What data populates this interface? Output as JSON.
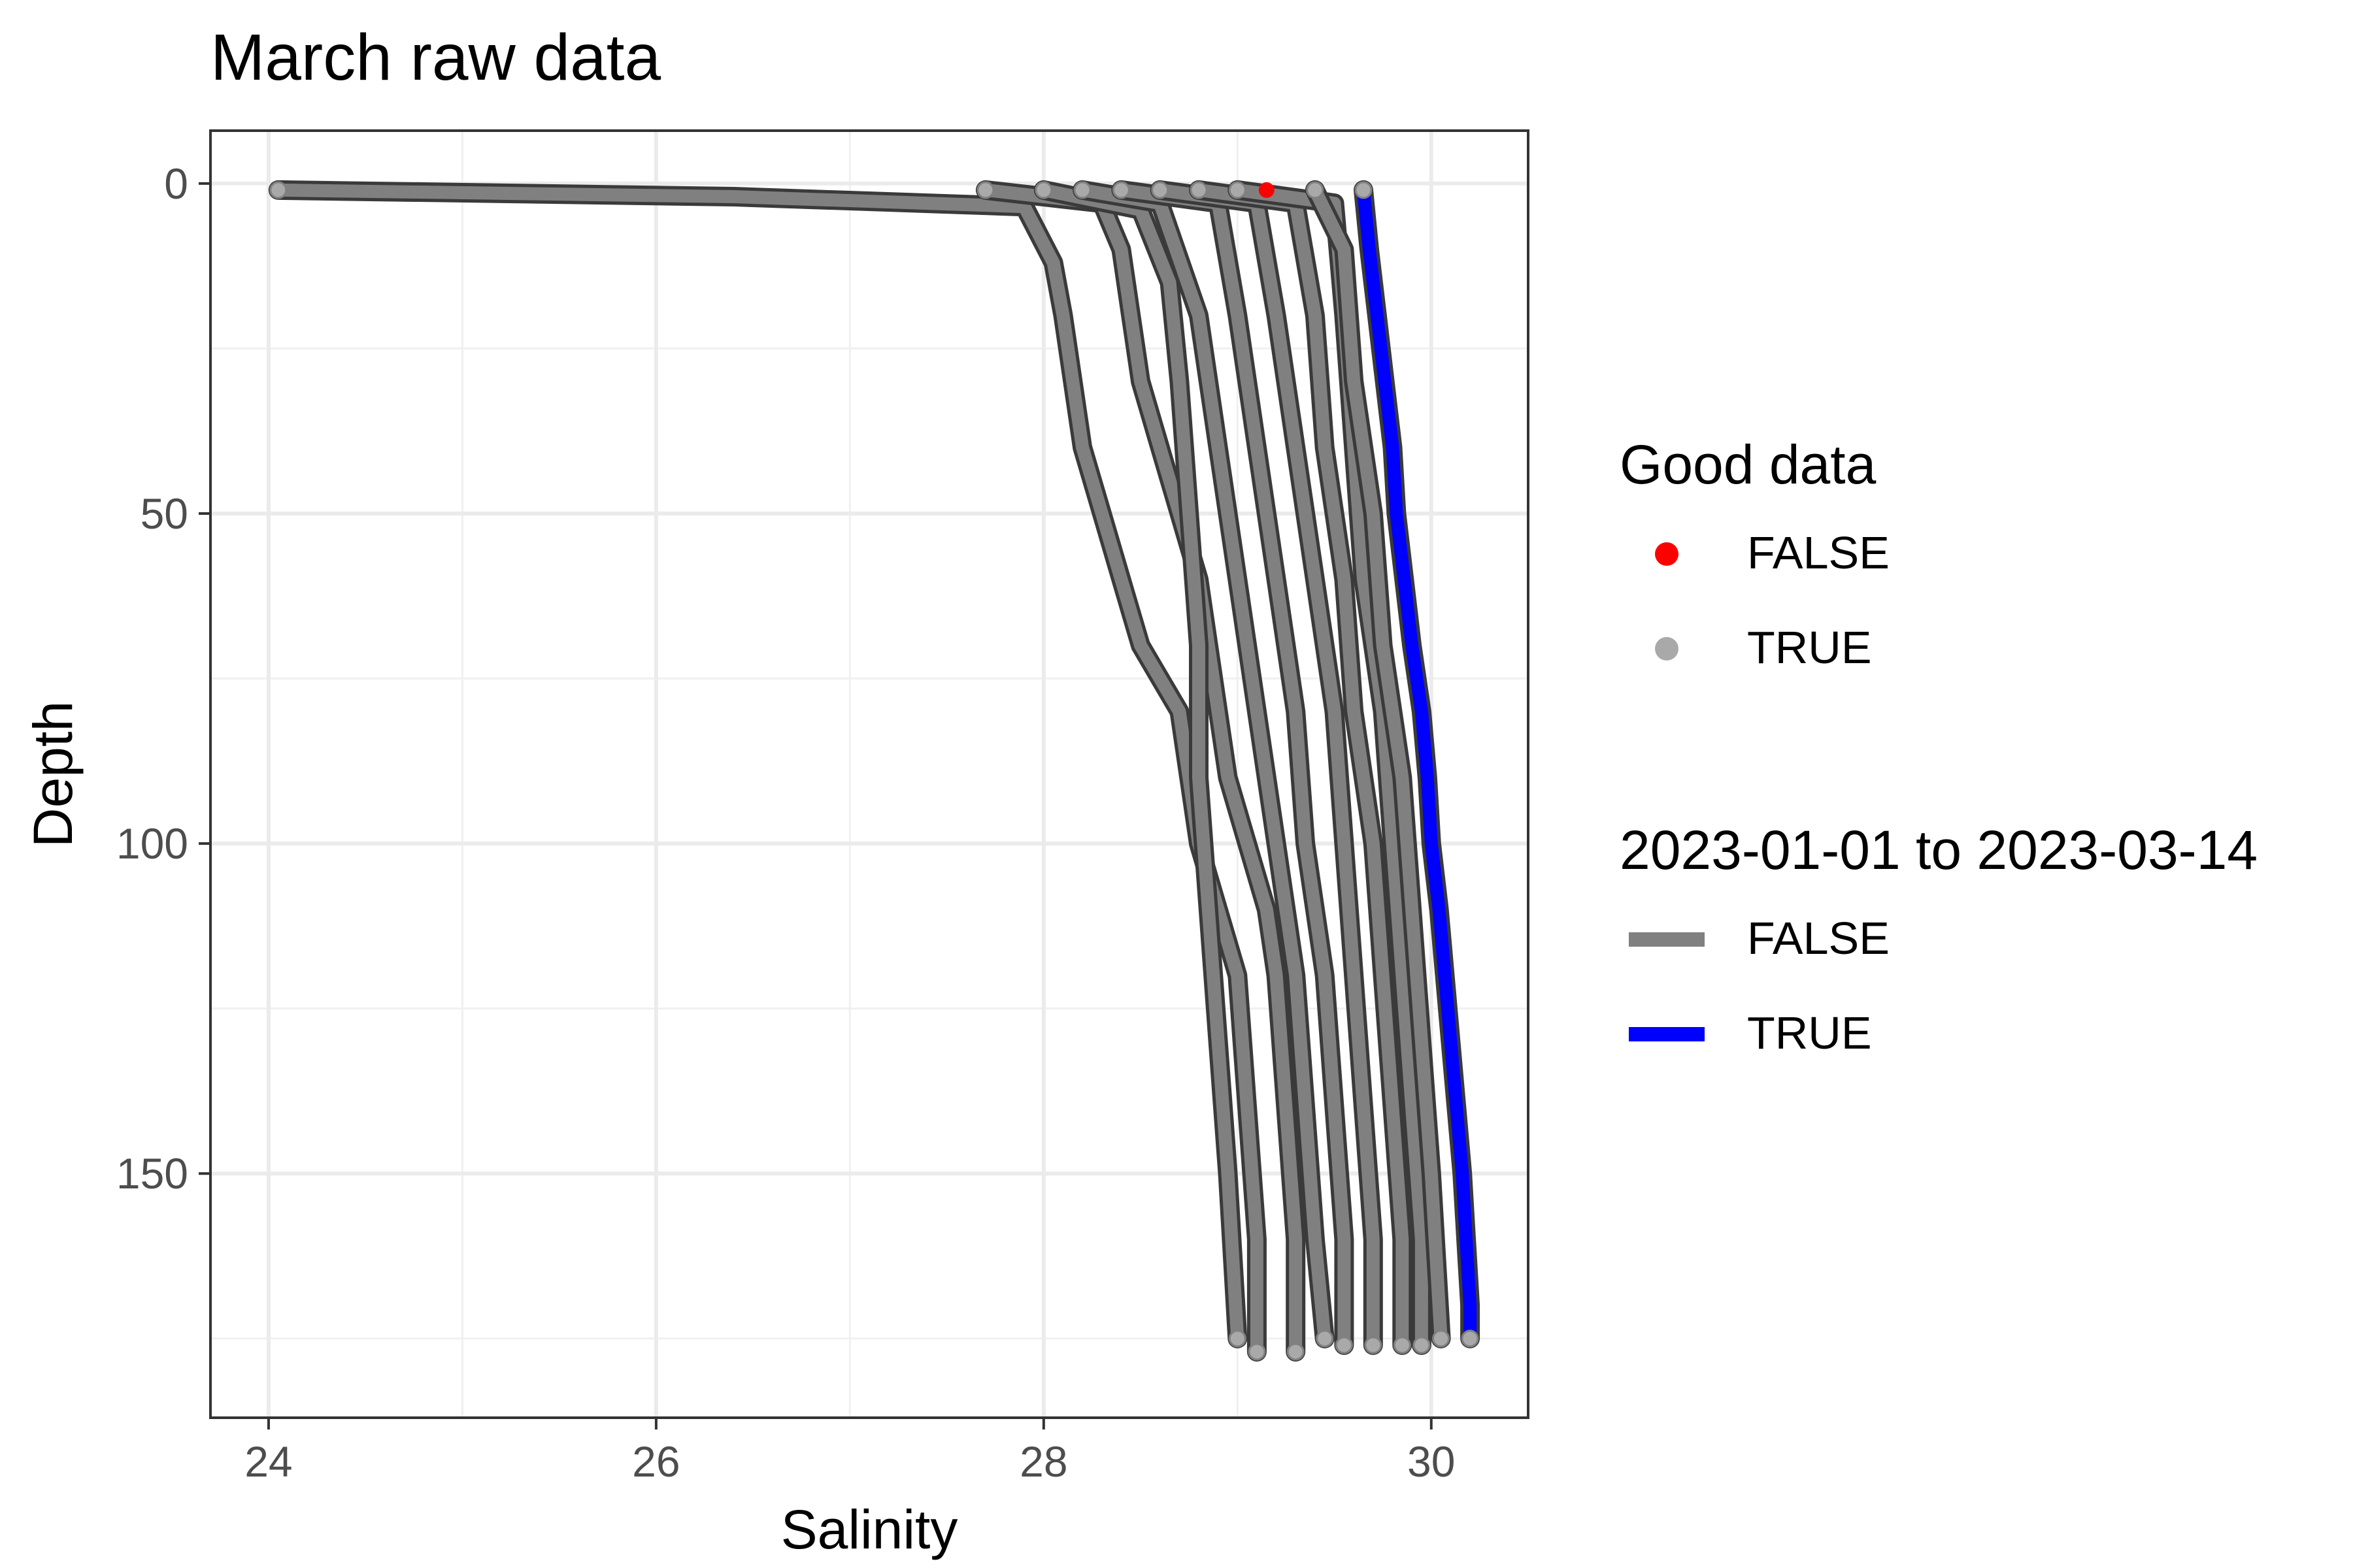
{
  "chart_data": {
    "type": "line",
    "title": "March raw data",
    "xlabel": "Salinity",
    "ylabel": "Depth",
    "xlim": [
      23.7,
      30.5
    ],
    "ylim": [
      187,
      -8
    ],
    "y_reversed": true,
    "x_ticks": [
      24,
      26,
      28,
      30
    ],
    "x_tick_labels": [
      "24",
      "26",
      "28",
      "30"
    ],
    "y_ticks": [
      0,
      50,
      100,
      150
    ],
    "y_tick_labels": [
      "0",
      "50",
      "100",
      "150"
    ],
    "grid": true,
    "legend_placement": "right",
    "legends": [
      {
        "title": "Good data",
        "kind": "point",
        "entries": [
          {
            "label": "FALSE",
            "color": "#ff0000"
          },
          {
            "label": "TRUE",
            "color": "#a9a9a9"
          }
        ]
      },
      {
        "title": "2023-01-01 to 2023-03-14",
        "kind": "line",
        "entries": [
          {
            "label": "FALSE",
            "color": "#808080"
          },
          {
            "label": "TRUE",
            "color": "#0000ff"
          }
        ]
      }
    ],
    "series": [
      {
        "name": "FALSE",
        "color": "#808080",
        "points": [
          [
            24.05,
            1
          ],
          [
            26.4,
            2
          ],
          [
            27.9,
            3.5
          ],
          [
            28.05,
            12
          ],
          [
            28.1,
            20
          ],
          [
            28.15,
            30
          ],
          [
            28.2,
            40
          ],
          [
            28.3,
            50
          ],
          [
            28.4,
            60
          ],
          [
            28.5,
            70
          ],
          [
            28.6,
            75
          ],
          [
            28.7,
            80
          ],
          [
            28.75,
            90
          ],
          [
            28.8,
            100
          ],
          [
            28.9,
            110
          ],
          [
            29.0,
            120
          ],
          [
            29.05,
            140
          ],
          [
            29.1,
            160
          ],
          [
            29.1,
            177
          ]
        ]
      },
      {
        "name": "FALSE",
        "color": "#808080",
        "points": [
          [
            27.7,
            1
          ],
          [
            28.3,
            3
          ],
          [
            28.4,
            10
          ],
          [
            28.45,
            20
          ],
          [
            28.5,
            30
          ],
          [
            28.6,
            40
          ],
          [
            28.7,
            50
          ],
          [
            28.8,
            60
          ],
          [
            28.85,
            70
          ],
          [
            28.9,
            80
          ],
          [
            28.95,
            90
          ],
          [
            29.05,
            100
          ],
          [
            29.15,
            110
          ],
          [
            29.2,
            120
          ],
          [
            29.25,
            140
          ],
          [
            29.3,
            160
          ],
          [
            29.3,
            177
          ]
        ]
      },
      {
        "name": "FALSE",
        "color": "#808080",
        "points": [
          [
            28.0,
            1
          ],
          [
            28.5,
            4
          ],
          [
            28.65,
            15
          ],
          [
            28.7,
            30
          ],
          [
            28.75,
            50
          ],
          [
            28.8,
            70
          ],
          [
            28.8,
            90
          ],
          [
            28.85,
            110
          ],
          [
            28.9,
            130
          ],
          [
            28.95,
            150
          ],
          [
            29.0,
            175
          ]
        ]
      },
      {
        "name": "FALSE",
        "color": "#808080",
        "points": [
          [
            28.2,
            1
          ],
          [
            28.6,
            3
          ],
          [
            28.8,
            20
          ],
          [
            28.9,
            40
          ],
          [
            29.0,
            60
          ],
          [
            29.1,
            80
          ],
          [
            29.2,
            100
          ],
          [
            29.3,
            120
          ],
          [
            29.35,
            140
          ],
          [
            29.4,
            160
          ],
          [
            29.45,
            175
          ]
        ]
      },
      {
        "name": "FALSE",
        "color": "#808080",
        "points": [
          [
            28.4,
            1
          ],
          [
            28.9,
            3
          ],
          [
            29.0,
            20
          ],
          [
            29.1,
            40
          ],
          [
            29.2,
            60
          ],
          [
            29.3,
            80
          ],
          [
            29.35,
            100
          ],
          [
            29.45,
            120
          ],
          [
            29.5,
            140
          ],
          [
            29.55,
            160
          ],
          [
            29.55,
            176
          ]
        ]
      },
      {
        "name": "FALSE",
        "color": "#808080",
        "points": [
          [
            28.6,
            1
          ],
          [
            29.1,
            3
          ],
          [
            29.2,
            20
          ],
          [
            29.3,
            40
          ],
          [
            29.4,
            60
          ],
          [
            29.5,
            80
          ],
          [
            29.55,
            100
          ],
          [
            29.6,
            120
          ],
          [
            29.65,
            140
          ],
          [
            29.7,
            160
          ],
          [
            29.7,
            176
          ]
        ]
      },
      {
        "name": "FALSE",
        "color": "#808080",
        "points": [
          [
            28.8,
            1
          ],
          [
            29.3,
            3
          ],
          [
            29.4,
            20
          ],
          [
            29.45,
            40
          ],
          [
            29.55,
            60
          ],
          [
            29.6,
            80
          ],
          [
            29.7,
            100
          ],
          [
            29.75,
            120
          ],
          [
            29.8,
            140
          ],
          [
            29.85,
            160
          ],
          [
            29.85,
            176
          ]
        ]
      },
      {
        "name": "FALSE",
        "color": "#808080",
        "points": [
          [
            29.0,
            1
          ],
          [
            29.5,
            3
          ],
          [
            29.55,
            20
          ],
          [
            29.6,
            40
          ],
          [
            29.65,
            60
          ],
          [
            29.75,
            80
          ],
          [
            29.8,
            100
          ],
          [
            29.85,
            120
          ],
          [
            29.9,
            140
          ],
          [
            29.95,
            160
          ],
          [
            29.95,
            176
          ]
        ]
      },
      {
        "name": "FALSE",
        "color": "#808080",
        "points": [
          [
            29.4,
            1
          ],
          [
            29.55,
            10
          ],
          [
            29.6,
            30
          ],
          [
            29.7,
            50
          ],
          [
            29.75,
            70
          ],
          [
            29.85,
            90
          ],
          [
            29.9,
            110
          ],
          [
            29.95,
            130
          ],
          [
            30.0,
            150
          ],
          [
            30.05,
            175
          ]
        ]
      },
      {
        "name": "TRUE",
        "color": "#0000ff",
        "points": [
          [
            29.65,
            1
          ],
          [
            29.68,
            10
          ],
          [
            29.72,
            20
          ],
          [
            29.76,
            30
          ],
          [
            29.8,
            40
          ],
          [
            29.82,
            50
          ],
          [
            29.86,
            60
          ],
          [
            29.9,
            70
          ],
          [
            29.95,
            80
          ],
          [
            29.98,
            90
          ],
          [
            30.0,
            100
          ],
          [
            30.04,
            110
          ],
          [
            30.07,
            120
          ],
          [
            30.1,
            130
          ],
          [
            30.13,
            140
          ],
          [
            30.16,
            150
          ],
          [
            30.18,
            160
          ],
          [
            30.2,
            170
          ],
          [
            30.2,
            175
          ]
        ]
      }
    ],
    "points": [
      {
        "x": 29.15,
        "y": 1,
        "good": false,
        "color": "#ff0000"
      }
    ]
  }
}
